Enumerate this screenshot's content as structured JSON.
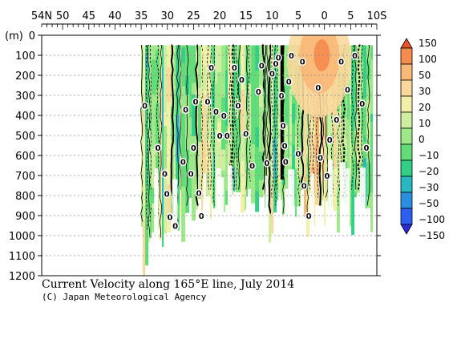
{
  "chart_data": {
    "type": "heatmap",
    "title": "Current Velocity along 165°E line, July 2014",
    "credit": "(C) Japan Meteorological Agency",
    "x_axis": {
      "ticks": [
        {
          "label": "54N",
          "lat": 54
        },
        {
          "label": "50",
          "lat": 50
        },
        {
          "label": "45",
          "lat": 45
        },
        {
          "label": "40",
          "lat": 40
        },
        {
          "label": "35",
          "lat": 35
        },
        {
          "label": "30",
          "lat": 30
        },
        {
          "label": "25",
          "lat": 25
        },
        {
          "label": "20",
          "lat": 20
        },
        {
          "label": "15",
          "lat": 15
        },
        {
          "label": "10",
          "lat": 10
        },
        {
          "label": "5",
          "lat": 5
        },
        {
          "label": "0",
          "lat": 0
        },
        {
          "label": "5",
          "lat": -5
        },
        {
          "label": "10S",
          "lat": -10
        }
      ],
      "range": [
        54,
        -10
      ]
    },
    "y_axis": {
      "unit_label": "(m)",
      "ticks": [
        0,
        100,
        200,
        300,
        400,
        500,
        600,
        700,
        800,
        900,
        1000,
        1100,
        1200
      ],
      "range": [
        0,
        1200
      ],
      "inverted": true
    },
    "colorbar": {
      "levels": [
        "150",
        "100",
        "50",
        "30",
        "20",
        "10",
        "0",
        "−10",
        "−20",
        "−30",
        "−50",
        "−100",
        "−150"
      ],
      "colors": [
        "#e8532a",
        "#f58b4e",
        "#f8b878",
        "#fad89c",
        "#f2f0a8",
        "#cfeea0",
        "#9ee88a",
        "#62dc78",
        "#33cf86",
        "#2ab8c0",
        "#2a8fe0",
        "#2c5ff0",
        "#2a2ad8"
      ]
    },
    "data_extent": {
      "lat_range": [
        35,
        -9
      ],
      "depth_range": [
        50,
        1100
      ]
    },
    "grid": "dashed horizontal"
  }
}
